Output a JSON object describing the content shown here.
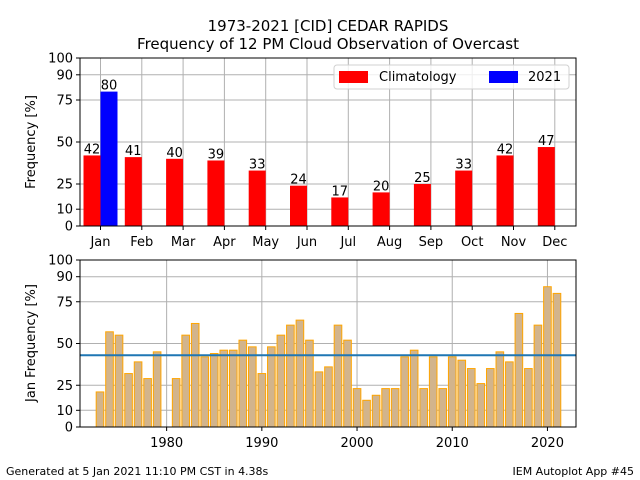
{
  "title": {
    "line1": "1973-2021 [CID] CEDAR RAPIDS",
    "line2": "Frequency of 12 PM Cloud Observation of Overcast"
  },
  "footer": {
    "left": "Generated at 5 Jan 2021 11:10 PM CST in 4.38s",
    "right": "IEM Autoplot App #45"
  },
  "colors": {
    "climatology": "#ff0000",
    "current_year": "#0000ff",
    "yearly_fill": "#d2b48c",
    "yearly_edge": "#ffa500",
    "mean_line": "#1f77b4",
    "grid": "#b0b0b0"
  },
  "chart_data": [
    {
      "type": "bar",
      "title": "1973-2021 [CID] CEDAR RAPIDS — Frequency of 12 PM Cloud Observation of Overcast",
      "xlabel": "",
      "ylabel": "Frequency [%]",
      "ylim": [
        0,
        100
      ],
      "yticks": [
        0,
        10,
        25,
        50,
        75,
        90,
        100
      ],
      "grid": true,
      "legend": {
        "placement": "top-right",
        "entries": [
          "Climatology",
          "2021"
        ]
      },
      "categories": [
        "Jan",
        "Feb",
        "Mar",
        "Apr",
        "May",
        "Jun",
        "Jul",
        "Aug",
        "Sep",
        "Oct",
        "Nov",
        "Dec"
      ],
      "series": [
        {
          "name": "Climatology",
          "values": [
            42,
            41,
            40,
            39,
            33,
            24,
            17,
            20,
            25,
            33,
            42,
            47
          ]
        },
        {
          "name": "2021",
          "values": [
            80,
            null,
            null,
            null,
            null,
            null,
            null,
            null,
            null,
            null,
            null,
            null
          ]
        }
      ]
    },
    {
      "type": "bar",
      "title": "",
      "xlabel": "",
      "ylabel": "Jan Frequency [%]",
      "ylim": [
        0,
        100
      ],
      "xlim": [
        1970.9,
        2023.0
      ],
      "yticks": [
        0,
        10,
        25,
        50,
        75,
        90,
        100
      ],
      "xticks": [
        1980,
        1990,
        2000,
        2010,
        2020
      ],
      "grid": true,
      "mean_line": 43,
      "x": [
        1973,
        1974,
        1975,
        1976,
        1977,
        1978,
        1979,
        1981,
        1982,
        1983,
        1984,
        1985,
        1986,
        1987,
        1988,
        1989,
        1990,
        1991,
        1992,
        1993,
        1994,
        1995,
        1996,
        1997,
        1998,
        1999,
        2000,
        2001,
        2002,
        2003,
        2004,
        2005,
        2006,
        2007,
        2008,
        2009,
        2010,
        2011,
        2012,
        2013,
        2014,
        2015,
        2016,
        2017,
        2018,
        2019,
        2020,
        2021
      ],
      "values": [
        21,
        57,
        55,
        32,
        39,
        29,
        45,
        29,
        55,
        62,
        42,
        44,
        46,
        46,
        52,
        48,
        32,
        48,
        55,
        61,
        64,
        52,
        33,
        36,
        61,
        52,
        23,
        16,
        19,
        23,
        23,
        42,
        46,
        23,
        42,
        23,
        42,
        40,
        35,
        26,
        35,
        45,
        39,
        68,
        35,
        61,
        84,
        80
      ]
    }
  ]
}
